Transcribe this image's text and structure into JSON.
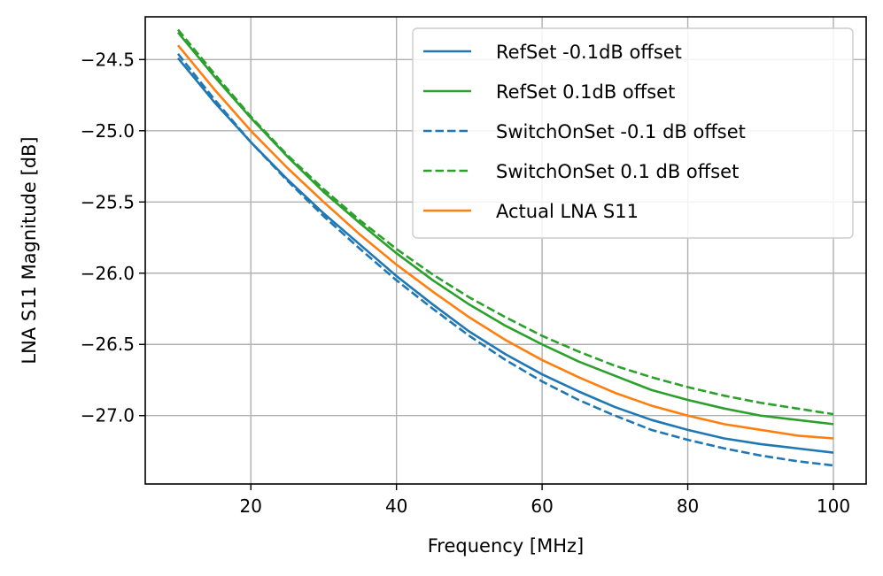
{
  "chart_data": {
    "type": "line",
    "title": "",
    "xlabel": "Frequency [MHz]",
    "ylabel": "LNA S11 Magnitude [dB]",
    "xlim": [
      5.5,
      104.5
    ],
    "ylim": [
      -27.48,
      -24.2
    ],
    "xticks": [
      20,
      40,
      60,
      80,
      100
    ],
    "xtick_labels": [
      "20",
      "40",
      "60",
      "80",
      "100"
    ],
    "yticks": [
      -24.5,
      -25.0,
      -25.5,
      -26.0,
      -26.5,
      -27.0
    ],
    "ytick_labels": [
      "−24.5",
      "−25.0",
      "−25.5",
      "−26.0",
      "−26.5",
      "−27.0"
    ],
    "grid": true,
    "legend_position": "top-right",
    "x": [
      10,
      15,
      20,
      25,
      30,
      35,
      40,
      45,
      50,
      55,
      60,
      65,
      70,
      75,
      80,
      85,
      90,
      95,
      100
    ],
    "series": [
      {
        "name": "RefSet -0.1dB offset",
        "color": "#1f77b4",
        "style": "solid",
        "values": [
          -24.49,
          -24.8,
          -25.08,
          -25.34,
          -25.58,
          -25.8,
          -26.02,
          -26.22,
          -26.41,
          -26.57,
          -26.71,
          -26.83,
          -26.94,
          -27.03,
          -27.1,
          -27.16,
          -27.2,
          -27.23,
          -27.26
        ]
      },
      {
        "name": "RefSet 0.1dB offset",
        "color": "#2ca02c",
        "style": "solid",
        "values": [
          -24.31,
          -24.62,
          -24.91,
          -25.18,
          -25.43,
          -25.65,
          -25.86,
          -26.05,
          -26.22,
          -26.37,
          -26.5,
          -26.62,
          -26.72,
          -26.82,
          -26.89,
          -26.95,
          -27.0,
          -27.03,
          -27.06
        ]
      },
      {
        "name": "SwitchOnSet -0.1 dB offset",
        "color": "#1f77b4",
        "style": "dashed",
        "values": [
          -24.46,
          -24.78,
          -25.08,
          -25.35,
          -25.6,
          -25.83,
          -26.05,
          -26.25,
          -26.44,
          -26.61,
          -26.76,
          -26.89,
          -27.0,
          -27.1,
          -27.17,
          -27.23,
          -27.28,
          -27.32,
          -27.35
        ]
      },
      {
        "name": "SwitchOnSet 0.1 dB offset",
        "color": "#2ca02c",
        "style": "dashed",
        "values": [
          -24.29,
          -24.6,
          -24.9,
          -25.17,
          -25.41,
          -25.63,
          -25.83,
          -26.01,
          -26.17,
          -26.31,
          -26.44,
          -26.55,
          -26.65,
          -26.73,
          -26.8,
          -26.86,
          -26.91,
          -26.95,
          -26.99
        ]
      },
      {
        "name": "Actual LNA S11",
        "color": "#ff7f0e",
        "style": "solid",
        "values": [
          -24.4,
          -24.71,
          -25.0,
          -25.26,
          -25.5,
          -25.73,
          -25.94,
          -26.13,
          -26.31,
          -26.47,
          -26.61,
          -26.73,
          -26.84,
          -26.93,
          -27.0,
          -27.06,
          -27.1,
          -27.14,
          -27.16
        ]
      }
    ]
  }
}
